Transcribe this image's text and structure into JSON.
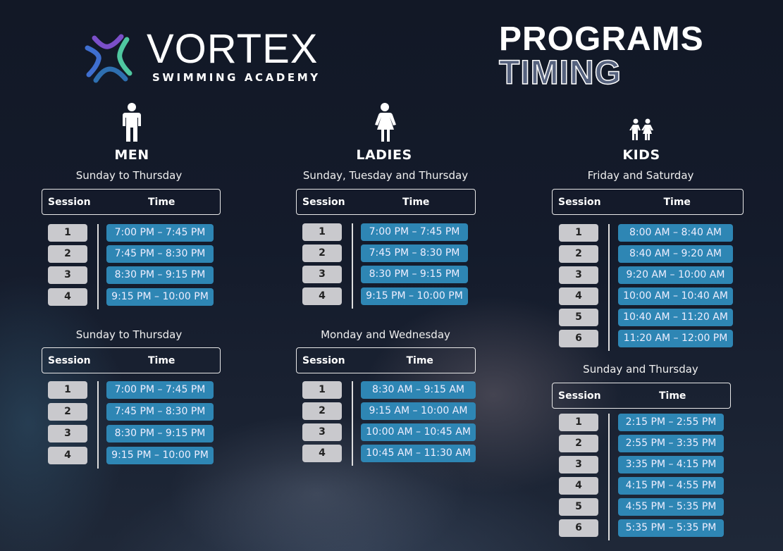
{
  "brand": {
    "name": "VORTEX",
    "tagline": "SWIMMING ACADEMY",
    "colors": [
      "#7b4fc9",
      "#3f6fd0",
      "#4fc7a0",
      "#2e86b4"
    ]
  },
  "heading": {
    "line1": "PROGRAMS",
    "line2": "TIMING"
  },
  "categories": [
    {
      "title": "MEN",
      "icon": "man-icon"
    },
    {
      "title": "LADIES",
      "icon": "woman-icon"
    },
    {
      "title": "KIDS",
      "icon": "children-icon"
    }
  ],
  "table_header": {
    "session": "Session",
    "time": "Time"
  },
  "schedules": [
    {
      "days": "Sunday to Thursday",
      "sessions": [
        "1",
        "2",
        "3",
        "4"
      ],
      "times": [
        "7:00 PM – 7:45 PM",
        "7:45 PM – 8:30 PM",
        "8:30 PM – 9:15 PM",
        "9:15 PM – 10:00 PM"
      ]
    },
    {
      "days": "Sunday to Thursday",
      "sessions": [
        "1",
        "2",
        "3",
        "4"
      ],
      "times": [
        "7:00 PM – 7:45 PM",
        "7:45 PM – 8:30 PM",
        "8:30 PM – 9:15 PM",
        "9:15 PM – 10:00 PM"
      ]
    },
    {
      "days": "Sunday, Tuesday and Thursday",
      "sessions": [
        "1",
        "2",
        "3",
        "4"
      ],
      "times": [
        "7:00 PM – 7:45 PM",
        "7:45 PM – 8:30 PM",
        "8:30 PM – 9:15 PM",
        "9:15 PM – 10:00 PM"
      ]
    },
    {
      "days": "Monday and Wednesday",
      "sessions": [
        "1",
        "2",
        "3",
        "4"
      ],
      "times": [
        "8:30 AM – 9:15 AM",
        "9:15 AM – 10:00 AM",
        "10:00 AM – 10:45 AM",
        "10:45 AM – 11:30 AM"
      ]
    },
    {
      "days": "Friday and Saturday",
      "sessions": [
        "1",
        "2",
        "3",
        "4",
        "5",
        "6"
      ],
      "times": [
        "8:00 AM – 8:40 AM",
        "8:40 AM – 9:20 AM",
        "9:20 AM – 10:00 AM",
        "10:00 AM – 10:40 AM",
        "10:40 AM – 11:20 AM",
        "11:20 AM – 12:00 PM"
      ]
    },
    {
      "days": "Sunday and Thursday",
      "sessions": [
        "1",
        "2",
        "3",
        "4",
        "5",
        "6"
      ],
      "times": [
        "2:15 PM – 2:55 PM",
        "2:55 PM – 3:35 PM",
        "3:35 PM – 4:15 PM",
        "4:15 PM – 4:55 PM",
        "4:55 PM – 5:35 PM",
        "5:35 PM – 5:35 PM"
      ]
    }
  ]
}
